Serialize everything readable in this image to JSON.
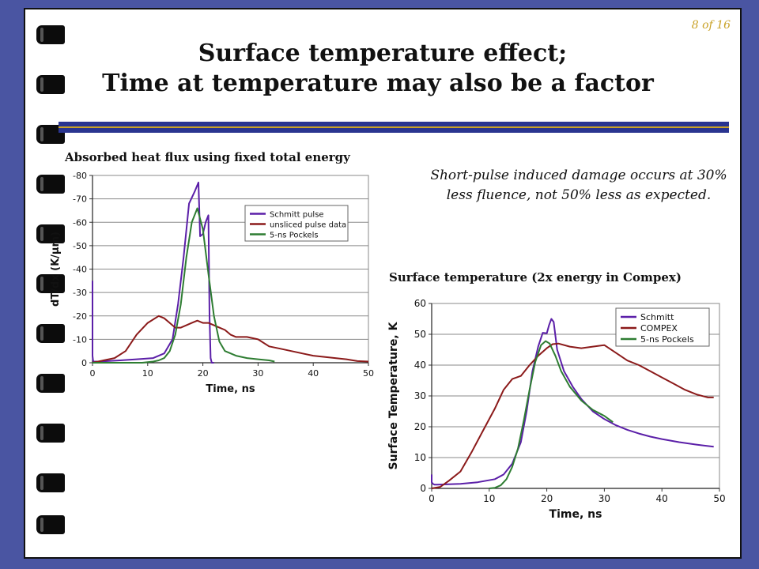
{
  "page_number": "8 of 16",
  "title_line1": "Surface temperature effect;",
  "title_line2": "Time at temperature may also be a factor",
  "note": "Short-pulse induced damage occurs at 30% less fluence, not 50% less as expected.",
  "colors": {
    "background": "#4a55a2",
    "rule": "#2a3590",
    "accent": "#c9a227"
  },
  "chart_data": [
    {
      "type": "line",
      "title": "Absorbed heat flux using fixed total energy",
      "xlabel": "Time, ns",
      "ylabel": "dT/dx (K/μm)",
      "xlim": [
        0,
        50
      ],
      "ylim": [
        0,
        -80
      ],
      "xticks": [
        "0",
        "10",
        "20",
        "30",
        "40",
        "50"
      ],
      "yticks": [
        "0",
        "-10",
        "-20",
        "-30",
        "-40",
        "-50",
        "-60",
        "-70",
        "-80"
      ],
      "grid": true,
      "legend_position": "top-right",
      "series": [
        {
          "name": "Schmitt pulse",
          "color": "#5b1fa8",
          "x": [
            0,
            0,
            0.1,
            0.2,
            1,
            5,
            8,
            11,
            13,
            14.5,
            15.5,
            16.5,
            17.5,
            18.5,
            19.2,
            19.5,
            20,
            20.5,
            21,
            21.2,
            21.4,
            21.6,
            22
          ],
          "y": [
            -35,
            -3,
            -1,
            -0.5,
            -0.5,
            -1,
            -1.5,
            -2,
            -4,
            -10,
            -25,
            -45,
            -68,
            -73,
            -77,
            -54,
            -55,
            -60,
            -63,
            -20,
            -2,
            0,
            0
          ]
        },
        {
          "name": "unsliced pulse data",
          "color": "#8b1a1a",
          "x": [
            0,
            2,
            4,
            6,
            8,
            10,
            12,
            13,
            14,
            15,
            16,
            17,
            18,
            19,
            20,
            21,
            22,
            23,
            24,
            25,
            26,
            28,
            30,
            32,
            34,
            36,
            38,
            40,
            42,
            44,
            46,
            48,
            50
          ],
          "y": [
            0,
            -1,
            -2,
            -5,
            -12,
            -17,
            -20,
            -19,
            -17,
            -15,
            -15,
            -16,
            -17,
            -18,
            -17,
            -17,
            -16,
            -15,
            -14,
            -12,
            -11,
            -11,
            -10,
            -7,
            -6,
            -5,
            -4,
            -3,
            -2.5,
            -2,
            -1.5,
            -0.7,
            -0.5
          ]
        },
        {
          "name": "5-ns Pockels",
          "color": "#2e7d32",
          "x": [
            0,
            3,
            6,
            9,
            11,
            12,
            13,
            14,
            15,
            16,
            17,
            18,
            19,
            20,
            21,
            22,
            23,
            24,
            26,
            28,
            30,
            32,
            33
          ],
          "y": [
            0,
            0,
            0,
            0,
            -0.5,
            -1,
            -2,
            -5,
            -12,
            -25,
            -45,
            -60,
            -66,
            -57,
            -38,
            -20,
            -9,
            -5,
            -3,
            -2,
            -1.5,
            -1,
            -0.5
          ]
        }
      ]
    },
    {
      "type": "line",
      "title": "Surface temperature (2x energy in Compex)",
      "xlabel": "Time, ns",
      "ylabel": "Surface Temperature, K",
      "xlim": [
        0,
        50
      ],
      "ylim": [
        0,
        60
      ],
      "xticks": [
        "0",
        "10",
        "20",
        "30",
        "40",
        "50"
      ],
      "yticks": [
        "0",
        "10",
        "20",
        "30",
        "40",
        "50",
        "60"
      ],
      "grid": true,
      "legend_position": "top-right",
      "series": [
        {
          "name": "Schmitt",
          "color": "#5b1fa8",
          "x": [
            0,
            0,
            0.2,
            0.5,
            1,
            5,
            8,
            11,
            12.5,
            14,
            15.5,
            16.5,
            17.5,
            18.5,
            19.3,
            20,
            20.4,
            20.8,
            21.2,
            21.8,
            23,
            24.5,
            26,
            28,
            30,
            32,
            34,
            36,
            38,
            40,
            43,
            46,
            49
          ],
          "y": [
            4.5,
            2,
            1.5,
            1.2,
            1.2,
            1.5,
            2,
            3,
            4.5,
            8,
            15,
            25,
            38,
            46,
            50.5,
            50.3,
            53,
            55,
            54,
            45,
            38,
            33,
            29,
            25,
            22.5,
            20.5,
            19,
            17.8,
            16.8,
            16,
            15,
            14.2,
            13.5
          ]
        },
        {
          "name": "COMPEX",
          "color": "#8b1a1a",
          "x": [
            0,
            1.5,
            3,
            5,
            7,
            9,
            11,
            12.5,
            14,
            15.5,
            17,
            18.5,
            20,
            21,
            22,
            24,
            26,
            28,
            30,
            32,
            34,
            36,
            38,
            40,
            42,
            44,
            46,
            48,
            49
          ],
          "y": [
            0,
            0.5,
            2.5,
            5.5,
            12,
            19,
            26,
            32,
            35.5,
            36.5,
            40,
            43,
            45.5,
            46.8,
            47,
            46,
            45.5,
            46,
            46.5,
            44,
            41.5,
            40,
            38,
            36,
            34,
            32,
            30.5,
            29.5,
            29.5
          ]
        },
        {
          "name": "5-ns Pockels",
          "color": "#2e7d32",
          "x": [
            10,
            11,
            12,
            13,
            14,
            15,
            16,
            17,
            18,
            19,
            19.8,
            20.5,
            21.5,
            22.5,
            24,
            26,
            28,
            30,
            31.5
          ],
          "y": [
            0,
            0.2,
            1,
            3,
            7,
            13,
            22,
            32,
            41,
            46.5,
            47.8,
            47,
            43,
            38,
            33,
            28.5,
            25.5,
            23.5,
            21.5
          ]
        }
      ]
    }
  ]
}
